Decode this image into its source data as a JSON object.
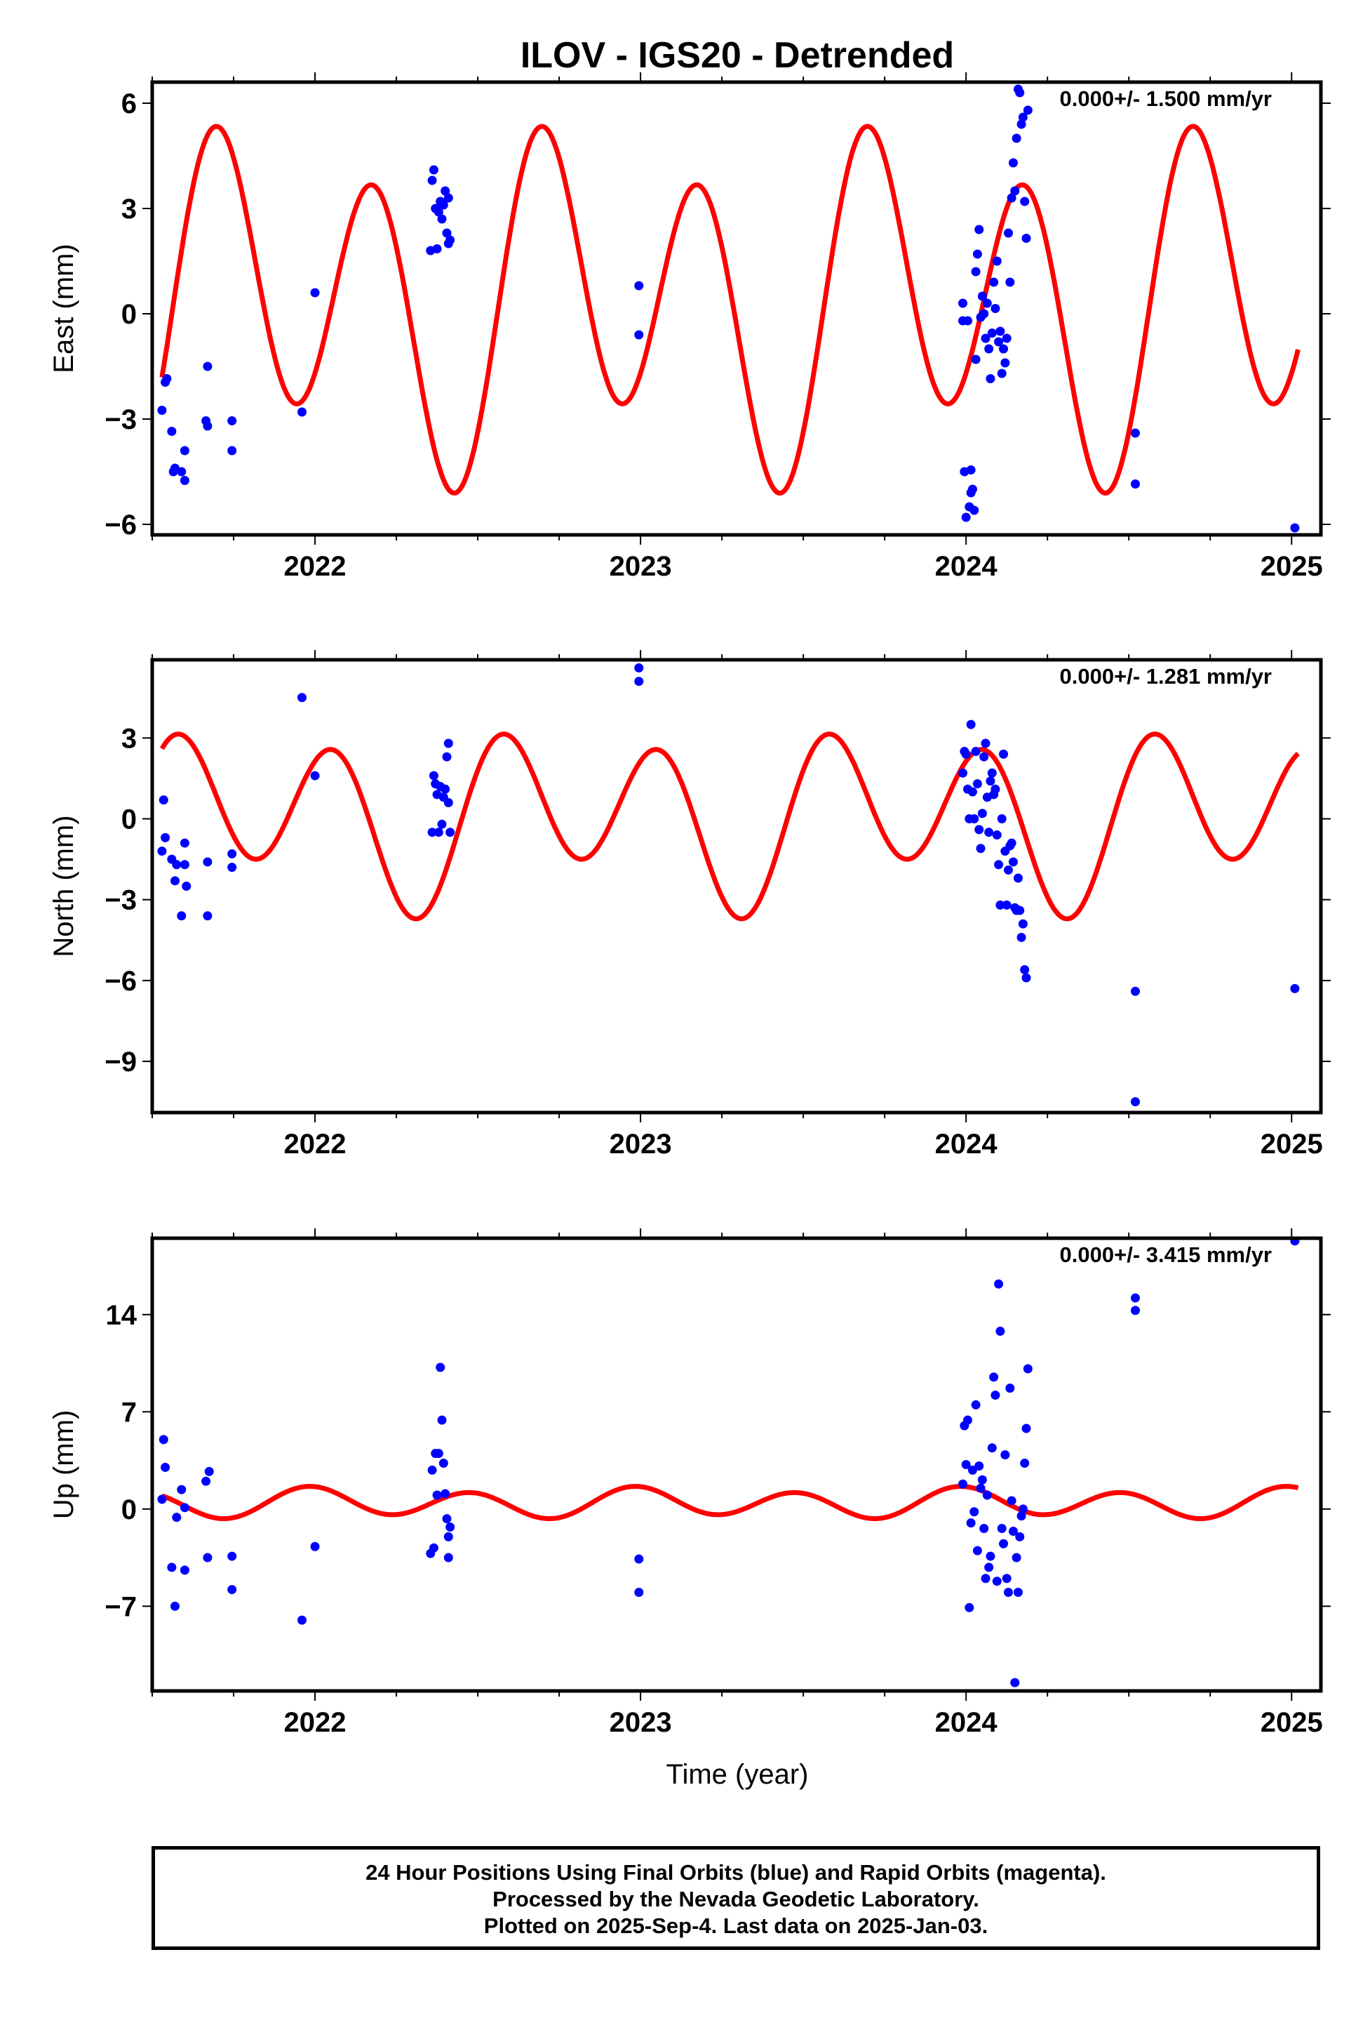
{
  "title": "ILOV - IGS20 - Detrended",
  "xlabel": "Time (year)",
  "footer": {
    "line1": "24 Hour Positions Using Final Orbits (blue) and Rapid Orbits (magenta).",
    "line2": "Processed by the Nevada Geodetic Laboratory.",
    "line3": "Plotted on 2025-Sep-4. Last data on 2025-Jan-03."
  },
  "colors": {
    "points": "#0000ff",
    "model": "#ff0000"
  },
  "chart_data": [
    {
      "type": "scatter",
      "panel": "east",
      "ylabel": "East (mm)",
      "annotation": "0.000+/- 1.500 mm/yr",
      "xlim": [
        2021.5,
        2025.09
      ],
      "ylim": [
        -6.3,
        6.6
      ],
      "xticks": [
        2022,
        2023,
        2024,
        2025
      ],
      "yticks": [
        -6,
        -3,
        0,
        3,
        6
      ],
      "points": [
        [
          2021.53,
          -2.75
        ],
        [
          2021.54,
          -1.95
        ],
        [
          2021.545,
          -1.85
        ],
        [
          2021.56,
          -3.35
        ],
        [
          2021.565,
          -4.5
        ],
        [
          2021.57,
          -4.4
        ],
        [
          2021.59,
          -4.5
        ],
        [
          2021.6,
          -4.75
        ],
        [
          2021.6,
          -3.9
        ],
        [
          2021.665,
          -3.05
        ],
        [
          2021.67,
          -1.5
        ],
        [
          2021.67,
          -3.2
        ],
        [
          2021.745,
          -3.05
        ],
        [
          2021.745,
          -3.9
        ],
        [
          2021.96,
          -2.8
        ],
        [
          2022.0,
          0.6
        ],
        [
          2022.355,
          1.8
        ],
        [
          2022.36,
          3.8
        ],
        [
          2022.365,
          4.1
        ],
        [
          2022.37,
          3.0
        ],
        [
          2022.375,
          1.85
        ],
        [
          2022.38,
          2.9
        ],
        [
          2022.385,
          3.2
        ],
        [
          2022.39,
          2.7
        ],
        [
          2022.395,
          3.1
        ],
        [
          2022.4,
          3.5
        ],
        [
          2022.405,
          2.3
        ],
        [
          2022.41,
          3.3
        ],
        [
          2022.41,
          2.0
        ],
        [
          2022.415,
          2.1
        ],
        [
          2022.995,
          0.8
        ],
        [
          2022.995,
          -0.6
        ],
        [
          2023.99,
          0.3
        ],
        [
          2023.99,
          -0.2
        ],
        [
          2023.995,
          -4.5
        ],
        [
          2024.0,
          -5.8
        ],
        [
          2024.005,
          -0.2
        ],
        [
          2024.01,
          -5.5
        ],
        [
          2024.015,
          -5.1
        ],
        [
          2024.015,
          -4.45
        ],
        [
          2024.02,
          -5.0
        ],
        [
          2024.025,
          -5.6
        ],
        [
          2024.03,
          1.2
        ],
        [
          2024.03,
          -1.3
        ],
        [
          2024.035,
          1.7
        ],
        [
          2024.04,
          2.4
        ],
        [
          2024.045,
          -0.1
        ],
        [
          2024.05,
          0.5
        ],
        [
          2024.055,
          0.0
        ],
        [
          2024.06,
          -0.7
        ],
        [
          2024.065,
          0.3
        ],
        [
          2024.07,
          -1.0
        ],
        [
          2024.075,
          -1.85
        ],
        [
          2024.08,
          -0.55
        ],
        [
          2024.085,
          0.9
        ],
        [
          2024.09,
          0.15
        ],
        [
          2024.095,
          1.5
        ],
        [
          2024.1,
          -0.8
        ],
        [
          2024.105,
          -0.5
        ],
        [
          2024.11,
          -1.7
        ],
        [
          2024.115,
          -1.0
        ],
        [
          2024.12,
          -1.4
        ],
        [
          2024.125,
          -0.7
        ],
        [
          2024.13,
          2.3
        ],
        [
          2024.135,
          0.9
        ],
        [
          2024.14,
          3.3
        ],
        [
          2024.145,
          4.3
        ],
        [
          2024.15,
          3.5
        ],
        [
          2024.155,
          5.0
        ],
        [
          2024.16,
          6.4
        ],
        [
          2024.165,
          6.3
        ],
        [
          2024.17,
          5.4
        ],
        [
          2024.175,
          5.6
        ],
        [
          2024.18,
          3.2
        ],
        [
          2024.185,
          2.15
        ],
        [
          2024.19,
          5.8
        ],
        [
          2024.52,
          -3.4
        ],
        [
          2024.52,
          -4.85
        ],
        [
          2025.01,
          -6.1
        ]
      ],
      "model": {
        "mean": 0.32,
        "a1s": -1.27,
        "a1c": 0.84,
        "a2s": 3.0,
        "a2c": -2.85,
        "from": 2021.53,
        "to": 2025.02
      }
    },
    {
      "type": "scatter",
      "panel": "north",
      "ylabel": "North (mm)",
      "annotation": "0.000+/- 1.281 mm/yr",
      "xlim": [
        2021.5,
        2025.09
      ],
      "ylim": [
        -10.9,
        5.9
      ],
      "xticks": [
        2022,
        2023,
        2024,
        2025
      ],
      "yticks": [
        -9,
        -6,
        -3,
        0,
        3
      ],
      "points": [
        [
          2021.53,
          -1.2
        ],
        [
          2021.535,
          0.7
        ],
        [
          2021.54,
          -0.7
        ],
        [
          2021.56,
          -1.5
        ],
        [
          2021.57,
          -2.3
        ],
        [
          2021.575,
          -1.7
        ],
        [
          2021.59,
          -3.6
        ],
        [
          2021.6,
          -1.7
        ],
        [
          2021.6,
          -0.9
        ],
        [
          2021.605,
          -2.5
        ],
        [
          2021.67,
          -3.6
        ],
        [
          2021.67,
          -1.6
        ],
        [
          2021.745,
          -1.8
        ],
        [
          2021.745,
          -1.3
        ],
        [
          2021.96,
          4.5
        ],
        [
          2022.0,
          1.6
        ],
        [
          2022.36,
          -0.5
        ],
        [
          2022.365,
          1.6
        ],
        [
          2022.37,
          1.3
        ],
        [
          2022.375,
          0.9
        ],
        [
          2022.38,
          -0.5
        ],
        [
          2022.385,
          1.2
        ],
        [
          2022.39,
          -0.2
        ],
        [
          2022.395,
          0.8
        ],
        [
          2022.4,
          1.1
        ],
        [
          2022.405,
          2.3
        ],
        [
          2022.41,
          0.6
        ],
        [
          2022.41,
          2.8
        ],
        [
          2022.415,
          -0.5
        ],
        [
          2022.995,
          5.6
        ],
        [
          2022.995,
          5.1
        ],
        [
          2023.99,
          1.7
        ],
        [
          2023.995,
          2.5
        ],
        [
          2024.0,
          2.4
        ],
        [
          2024.005,
          1.1
        ],
        [
          2024.01,
          0.0
        ],
        [
          2024.015,
          3.5
        ],
        [
          2024.02,
          1.0
        ],
        [
          2024.025,
          0.0
        ],
        [
          2024.03,
          2.5
        ],
        [
          2024.035,
          1.3
        ],
        [
          2024.04,
          -0.4
        ],
        [
          2024.045,
          -1.1
        ],
        [
          2024.05,
          0.2
        ],
        [
          2024.055,
          2.3
        ],
        [
          2024.06,
          2.8
        ],
        [
          2024.065,
          0.8
        ],
        [
          2024.07,
          -0.5
        ],
        [
          2024.075,
          1.4
        ],
        [
          2024.08,
          1.7
        ],
        [
          2024.085,
          0.9
        ],
        [
          2024.09,
          1.1
        ],
        [
          2024.095,
          -0.6
        ],
        [
          2024.1,
          -1.7
        ],
        [
          2024.105,
          -3.2
        ],
        [
          2024.11,
          0.0
        ],
        [
          2024.115,
          2.4
        ],
        [
          2024.12,
          -1.2
        ],
        [
          2024.125,
          -3.2
        ],
        [
          2024.13,
          -1.9
        ],
        [
          2024.135,
          -1.0
        ],
        [
          2024.14,
          -0.9
        ],
        [
          2024.145,
          -1.6
        ],
        [
          2024.15,
          -3.3
        ],
        [
          2024.155,
          -3.4
        ],
        [
          2024.16,
          -2.2
        ],
        [
          2024.165,
          -3.4
        ],
        [
          2024.17,
          -4.4
        ],
        [
          2024.175,
          -3.9
        ],
        [
          2024.18,
          -5.6
        ],
        [
          2024.185,
          -5.9
        ],
        [
          2024.52,
          -6.4
        ],
        [
          2024.52,
          -10.5
        ],
        [
          2025.01,
          -6.3
        ]
      ],
      "model": {
        "mean": 0.1,
        "a1s": -1.13,
        "a1c": 0.17,
        "a2s": 1.95,
        "a2c": 1.87,
        "from": 2021.53,
        "to": 2025.02
      }
    },
    {
      "type": "scatter",
      "panel": "up",
      "ylabel": "Up (mm)",
      "annotation": "0.000+/- 3.415 mm/yr",
      "xlim": [
        2021.5,
        2025.09
      ],
      "ylim": [
        -13.1,
        19.5
      ],
      "xticks": [
        2022,
        2023,
        2024,
        2025
      ],
      "yticks": [
        -7,
        0,
        7,
        14
      ],
      "points": [
        [
          2021.53,
          0.7
        ],
        [
          2021.535,
          5.0
        ],
        [
          2021.54,
          3.0
        ],
        [
          2021.56,
          -4.2
        ],
        [
          2021.57,
          -7.0
        ],
        [
          2021.575,
          -0.6
        ],
        [
          2021.59,
          1.4
        ],
        [
          2021.6,
          -4.4
        ],
        [
          2021.6,
          0.1
        ],
        [
          2021.665,
          2.0
        ],
        [
          2021.67,
          -3.5
        ],
        [
          2021.675,
          2.7
        ],
        [
          2021.745,
          -3.4
        ],
        [
          2021.745,
          -5.8
        ],
        [
          2021.96,
          -8.0
        ],
        [
          2022.0,
          -2.7
        ],
        [
          2022.355,
          -3.2
        ],
        [
          2022.36,
          2.8
        ],
        [
          2022.365,
          -2.8
        ],
        [
          2022.37,
          4.0
        ],
        [
          2022.375,
          1.0
        ],
        [
          2022.38,
          4.0
        ],
        [
          2022.385,
          10.2
        ],
        [
          2022.39,
          6.4
        ],
        [
          2022.395,
          3.3
        ],
        [
          2022.4,
          1.1
        ],
        [
          2022.405,
          -0.7
        ],
        [
          2022.41,
          -3.5
        ],
        [
          2022.41,
          -2.0
        ],
        [
          2022.415,
          -1.3
        ],
        [
          2022.995,
          -3.6
        ],
        [
          2022.995,
          -6.0
        ],
        [
          2023.99,
          1.8
        ],
        [
          2023.995,
          6.0
        ],
        [
          2024.0,
          3.2
        ],
        [
          2024.005,
          6.4
        ],
        [
          2024.01,
          -7.1
        ],
        [
          2024.015,
          -1.0
        ],
        [
          2024.02,
          2.8
        ],
        [
          2024.025,
          -0.2
        ],
        [
          2024.03,
          7.5
        ],
        [
          2024.035,
          -3.0
        ],
        [
          2024.04,
          3.1
        ],
        [
          2024.045,
          1.5
        ],
        [
          2024.05,
          2.1
        ],
        [
          2024.055,
          -1.4
        ],
        [
          2024.06,
          -5.0
        ],
        [
          2024.065,
          1.0
        ],
        [
          2024.07,
          -4.2
        ],
        [
          2024.075,
          -3.4
        ],
        [
          2024.08,
          4.4
        ],
        [
          2024.085,
          9.5
        ],
        [
          2024.09,
          8.2
        ],
        [
          2024.095,
          -5.2
        ],
        [
          2024.1,
          16.2
        ],
        [
          2024.105,
          12.8
        ],
        [
          2024.11,
          -1.4
        ],
        [
          2024.115,
          -2.5
        ],
        [
          2024.12,
          3.9
        ],
        [
          2024.125,
          -5.0
        ],
        [
          2024.13,
          -6.0
        ],
        [
          2024.135,
          8.7
        ],
        [
          2024.14,
          0.6
        ],
        [
          2024.145,
          -1.6
        ],
        [
          2024.15,
          -12.5
        ],
        [
          2024.155,
          -3.5
        ],
        [
          2024.16,
          -6.0
        ],
        [
          2024.165,
          -2.0
        ],
        [
          2024.17,
          -0.5
        ],
        [
          2024.175,
          0.0
        ],
        [
          2024.18,
          3.3
        ],
        [
          2024.185,
          5.8
        ],
        [
          2024.19,
          10.1
        ],
        [
          2024.52,
          15.2
        ],
        [
          2024.52,
          14.3
        ],
        [
          2025.01,
          19.3
        ]
      ],
      "model": {
        "mean": 0.43,
        "a1s": 0.11,
        "a1c": 0.24,
        "a2s": -0.26,
        "a2c": 0.94,
        "from": 2021.53,
        "to": 2025.02
      }
    }
  ]
}
